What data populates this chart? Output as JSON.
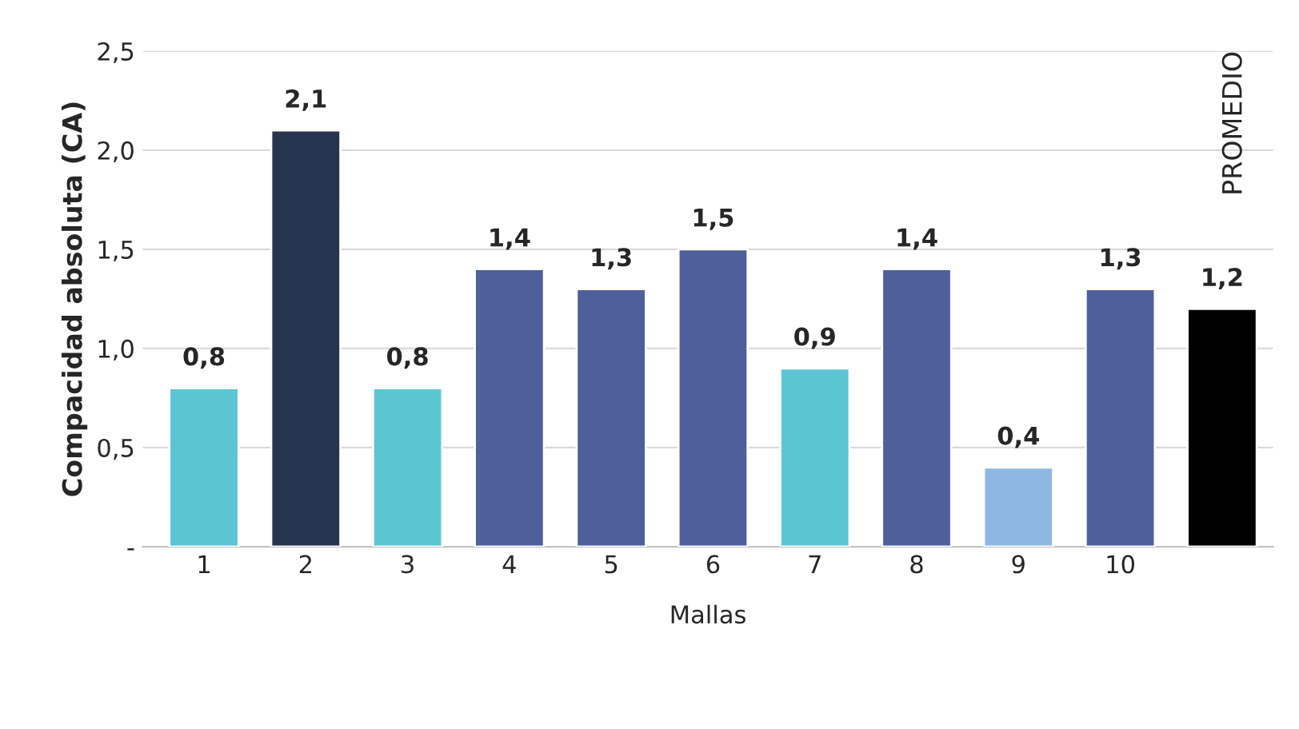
{
  "chart_data": {
    "type": "bar",
    "xlabel": "Mallas",
    "ylabel": "Compacidad absoluta (CA)",
    "categories": [
      "1",
      "2",
      "3",
      "4",
      "5",
      "6",
      "7",
      "8",
      "9",
      "10",
      "PROMEDIO"
    ],
    "values": [
      0.8,
      2.1,
      0.8,
      1.4,
      1.3,
      1.5,
      0.9,
      1.4,
      0.4,
      1.3,
      1.2
    ],
    "value_labels": [
      "0,8",
      "2,1",
      "0,8",
      "1,4",
      "1,3",
      "1,5",
      "0,9",
      "1,4",
      "0,4",
      "1,3",
      "1,2"
    ],
    "colors": [
      "#5bc5d3",
      "#273450",
      "#5bc5d3",
      "#4f5f9b",
      "#4f5f9b",
      "#4f5f9b",
      "#5bc5d3",
      "#4f5f9b",
      "#8fb8e0",
      "#4f5f9b",
      "#000000"
    ],
    "ylim": [
      0,
      2.5
    ],
    "yticks": [
      {
        "value": 0,
        "label": "-"
      },
      {
        "value": 0.5,
        "label": "0,5"
      },
      {
        "value": 1.0,
        "label": "1,0"
      },
      {
        "value": 1.5,
        "label": "1,5"
      },
      {
        "value": 2.0,
        "label": "2,0"
      },
      {
        "value": 2.5,
        "label": "2,5"
      }
    ],
    "grid": "y"
  }
}
